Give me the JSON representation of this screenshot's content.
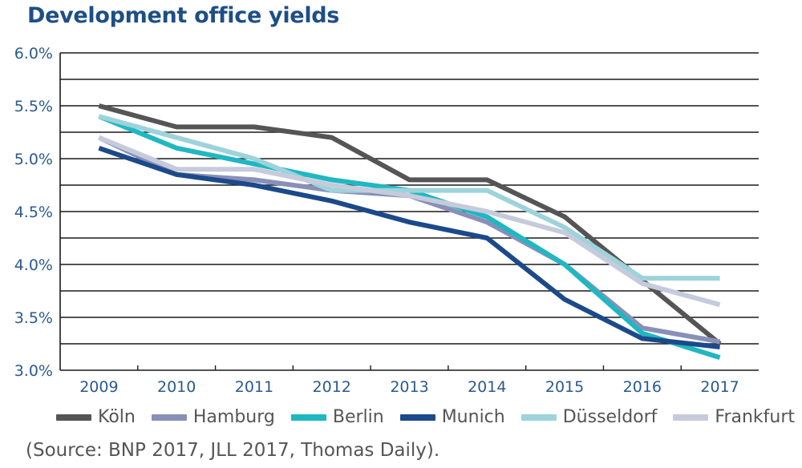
{
  "chart_data": {
    "type": "line",
    "title": "Development office yields",
    "x": [
      "2009",
      "2010",
      "2011",
      "2012",
      "2013",
      "2014",
      "2015",
      "2016",
      "2017"
    ],
    "ylim": [
      3.0,
      6.0
    ],
    "y_ticks": [
      "3.0%",
      "3.5%",
      "4.0%",
      "4.5%",
      "5.0%",
      "5.5%",
      "6.0%"
    ],
    "grid": true,
    "legend_position": "bottom",
    "series": [
      {
        "name": "Köln",
        "color": "#555555",
        "values": [
          5.5,
          5.3,
          5.3,
          5.2,
          4.8,
          4.8,
          4.45,
          3.85,
          3.25
        ]
      },
      {
        "name": "Hamburg",
        "color": "#8890b8",
        "values": [
          5.2,
          4.85,
          4.8,
          4.7,
          4.65,
          4.4,
          4.0,
          3.4,
          3.27
        ]
      },
      {
        "name": "Berlin",
        "color": "#1fb8c2",
        "values": [
          5.4,
          5.1,
          4.95,
          4.8,
          4.7,
          4.45,
          4.0,
          3.35,
          3.12
        ]
      },
      {
        "name": "Munich",
        "color": "#1b4a8a",
        "values": [
          5.1,
          4.85,
          4.75,
          4.6,
          4.4,
          4.25,
          3.67,
          3.3,
          3.22
        ]
      },
      {
        "name": "Düsseldorf",
        "color": "#9dd3da",
        "values": [
          5.4,
          5.2,
          5.0,
          4.7,
          4.7,
          4.7,
          4.35,
          3.87,
          3.87
        ]
      },
      {
        "name": "Frankfurt",
        "color": "#c6cbdc",
        "values": [
          5.2,
          4.9,
          4.9,
          4.75,
          4.65,
          4.5,
          4.3,
          3.82,
          3.62
        ]
      }
    ]
  },
  "source": "(Source: BNP 2017, JLL 2017, Thomas Daily)."
}
